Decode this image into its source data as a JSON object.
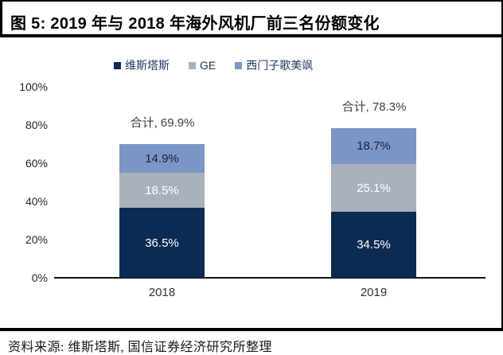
{
  "figure": {
    "title": "图 5: 2019 年与 2018 年海外风机厂前三名份额变化",
    "source": "资料来源: 维斯塔斯, 国信证券经济研究所整理"
  },
  "chart_data": {
    "type": "bar",
    "stacked": true,
    "title": "2019 年与 2018 年海外风机厂前三名份额变化",
    "categories": [
      "2018",
      "2019"
    ],
    "series": [
      {
        "name": "维斯塔斯",
        "values": [
          36.5,
          34.5
        ],
        "color": "#0d2a52",
        "label_color": "#ffffff"
      },
      {
        "name": "GE",
        "values": [
          18.5,
          25.1
        ],
        "color": "#a9b2bc",
        "label_color": "#ffffff"
      },
      {
        "name": "西门子歌美飒",
        "values": [
          14.9,
          18.7
        ],
        "color": "#7c95c4",
        "label_color": "#16243f"
      }
    ],
    "totals": {
      "labels": [
        "合计, 69.9%",
        "合计, 78.3%"
      ],
      "values": [
        69.9,
        78.3
      ]
    },
    "segment_labels": [
      [
        "36.5%",
        "34.5%"
      ],
      [
        "18.5%",
        "25.1%"
      ],
      [
        "14.9%",
        "18.7%"
      ]
    ],
    "y_ticks": [
      "100%",
      "80%",
      "60%",
      "40%",
      "20%",
      "0%"
    ],
    "ylim": [
      0,
      100
    ],
    "grid": false,
    "legend_position": "top",
    "xlabel": "",
    "ylabel": ""
  }
}
